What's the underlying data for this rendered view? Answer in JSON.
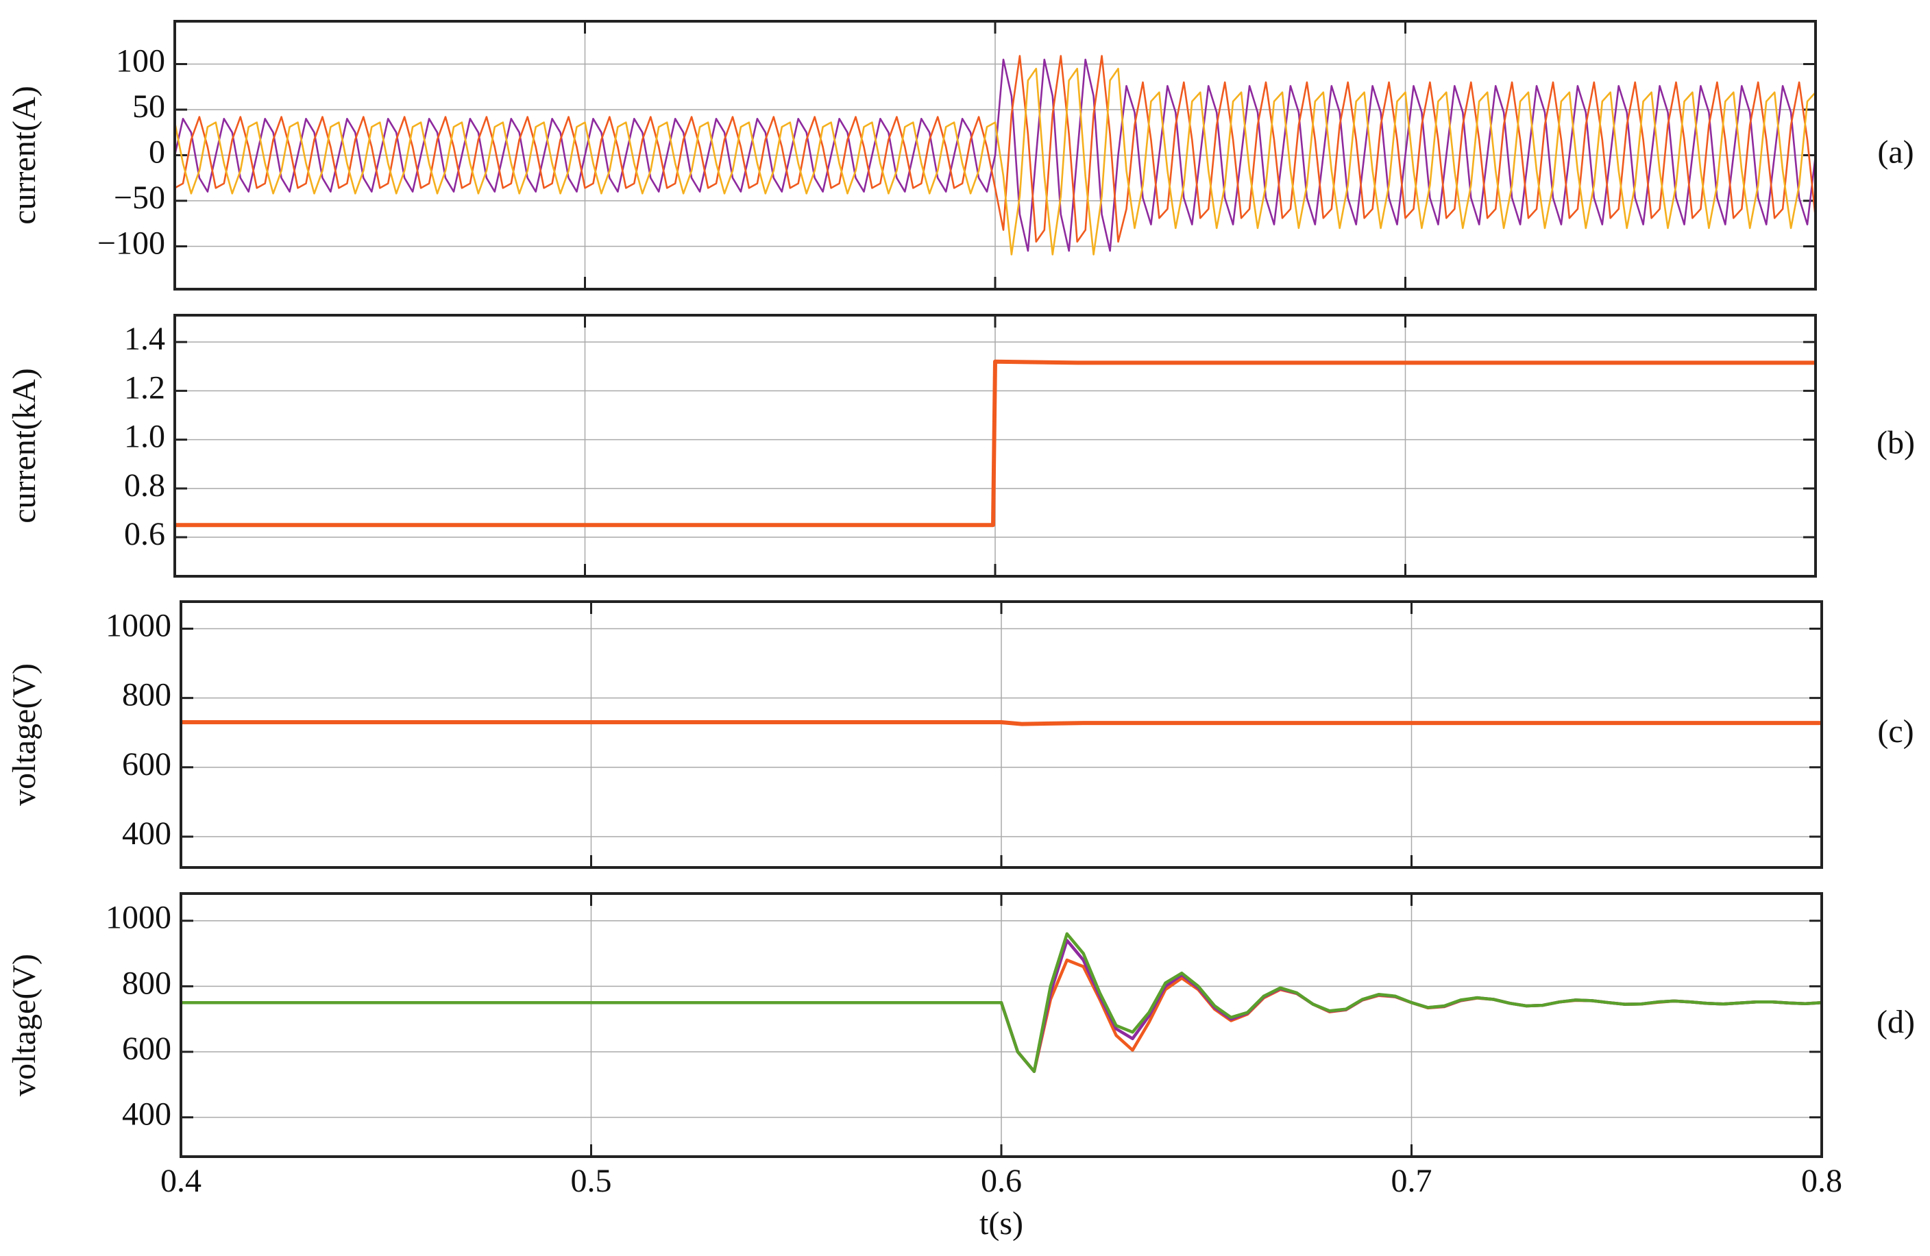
{
  "chart_data": [
    {
      "type": "line",
      "label": "(a)",
      "ylabel": "current(A)",
      "x": [
        0.4,
        0.402,
        0.404,
        0.406,
        0.408,
        0.41,
        0.412,
        0.414,
        0.416,
        0.418,
        0.42,
        0.422,
        0.424,
        0.426,
        0.428,
        0.43,
        0.432,
        0.434,
        0.436,
        0.438,
        0.44,
        0.442,
        0.444,
        0.446,
        0.448,
        0.45,
        0.452,
        0.454,
        0.456,
        0.458,
        0.46,
        0.462,
        0.464,
        0.466,
        0.468,
        0.47,
        0.472,
        0.474,
        0.476,
        0.478,
        0.48,
        0.482,
        0.484,
        0.486,
        0.488,
        0.49,
        0.492,
        0.494,
        0.496,
        0.498,
        0.5,
        0.502,
        0.504,
        0.506,
        0.508,
        0.51,
        0.512,
        0.514,
        0.516,
        0.518,
        0.52,
        0.522,
        0.524,
        0.526,
        0.528,
        0.53,
        0.532,
        0.534,
        0.536,
        0.538,
        0.54,
        0.542,
        0.544,
        0.546,
        0.548,
        0.55,
        0.552,
        0.554,
        0.556,
        0.558,
        0.56,
        0.562,
        0.564,
        0.566,
        0.568,
        0.57,
        0.572,
        0.574,
        0.576,
        0.578,
        0.58,
        0.582,
        0.584,
        0.586,
        0.588,
        0.59,
        0.592,
        0.594,
        0.596,
        0.598,
        0.6,
        0.602,
        0.604,
        0.606,
        0.608,
        0.61,
        0.612,
        0.614,
        0.616,
        0.618,
        0.62,
        0.622,
        0.624,
        0.626,
        0.628,
        0.63,
        0.632,
        0.634,
        0.636,
        0.638,
        0.64,
        0.642,
        0.644,
        0.646,
        0.648,
        0.65,
        0.652,
        0.654,
        0.656,
        0.658,
        0.66,
        0.662,
        0.664,
        0.666,
        0.668,
        0.67,
        0.672,
        0.674,
        0.676,
        0.678,
        0.68,
        0.682,
        0.684,
        0.686,
        0.688,
        0.69,
        0.692,
        0.694,
        0.696,
        0.698,
        0.7,
        0.702,
        0.704,
        0.706,
        0.708,
        0.71,
        0.712,
        0.714,
        0.716,
        0.718,
        0.72,
        0.722,
        0.724,
        0.726,
        0.728,
        0.73,
        0.732,
        0.734,
        0.736,
        0.738,
        0.74,
        0.742,
        0.744,
        0.746,
        0.748,
        0.75,
        0.752,
        0.754,
        0.756,
        0.758,
        0.76,
        0.762,
        0.764,
        0.766,
        0.768,
        0.77,
        0.772,
        0.774,
        0.776,
        0.778,
        0.78,
        0.782,
        0.784,
        0.786,
        0.788,
        0.79,
        0.792,
        0.794,
        0.796,
        0.798,
        0.8
      ],
      "xlim": [
        0.4,
        0.8
      ],
      "xticks": [
        0.4,
        0.5,
        0.6,
        0.7,
        0.8
      ],
      "ylim": [
        -147,
        147
      ],
      "yticks": [
        {
          "value": -100,
          "label": "−100"
        },
        {
          "value": -50,
          "label": "−50"
        },
        0,
        50,
        100
      ],
      "grid": true,
      "series": [
        {
          "color": "#8e2a9e",
          "values": [
            0,
            40,
            25,
            -25,
            -40,
            0,
            40,
            25,
            -25,
            -40,
            0,
            40,
            25,
            -25,
            -40,
            0,
            40,
            25,
            -25,
            -40,
            0,
            40,
            25,
            -25,
            -40,
            0,
            40,
            25,
            -25,
            -40,
            0,
            40,
            25,
            -25,
            -40,
            0,
            40,
            25,
            -25,
            -40,
            0,
            40,
            25,
            -25,
            -40,
            0,
            40,
            25,
            -25,
            -40,
            0,
            40,
            25,
            -25,
            -40,
            0,
            40,
            25,
            -25,
            -40,
            0,
            40,
            25,
            -25,
            -40,
            0,
            40,
            25,
            -25,
            -40,
            0,
            40,
            25,
            -25,
            -40,
            0,
            40,
            25,
            -25,
            -40,
            0,
            40,
            25,
            -25,
            -40,
            0,
            40,
            25,
            -25,
            -40,
            0,
            40,
            25,
            -25,
            -40,
            0,
            40,
            25,
            -25,
            -40,
            0,
            105,
            65,
            -65,
            -105,
            0,
            105,
            65,
            -65,
            -105,
            0,
            105,
            65,
            -65,
            -105,
            0,
            76,
            47,
            -47,
            -76,
            0,
            76,
            47,
            -47,
            -76,
            0,
            76,
            47,
            -47,
            -76,
            0,
            76,
            47,
            -47,
            -76,
            0,
            76,
            47,
            -47,
            -76,
            0,
            76,
            47,
            -47,
            -76,
            0,
            76,
            47,
            -47,
            -76,
            0,
            76,
            47,
            -47,
            -76,
            0,
            76,
            47,
            -47,
            -76,
            0,
            76,
            47,
            -47,
            -76,
            0,
            76,
            47,
            -47,
            -76,
            0,
            76,
            47,
            -47,
            -76,
            0,
            76,
            47,
            -47,
            -76,
            0,
            76,
            47,
            -47,
            -76,
            0,
            76,
            47,
            -47,
            -76,
            0,
            76,
            47,
            -47,
            -76,
            0,
            76,
            47,
            -47,
            -76,
            0
          ]
        },
        {
          "color": "#f05a1e",
          "values": [
            -36,
            -31,
            17,
            42,
            9,
            -36,
            -31,
            17,
            42,
            9,
            -36,
            -31,
            17,
            42,
            9,
            -36,
            -31,
            17,
            42,
            9,
            -36,
            -31,
            17,
            42,
            9,
            -36,
            -31,
            17,
            42,
            9,
            -36,
            -31,
            17,
            42,
            9,
            -36,
            -31,
            17,
            42,
            9,
            -36,
            -31,
            17,
            42,
            9,
            -36,
            -31,
            17,
            42,
            9,
            -36,
            -31,
            17,
            42,
            9,
            -36,
            -31,
            17,
            42,
            9,
            -36,
            -31,
            17,
            42,
            9,
            -36,
            -31,
            17,
            42,
            9,
            -36,
            -31,
            17,
            42,
            9,
            -36,
            -31,
            17,
            42,
            9,
            -36,
            -31,
            17,
            42,
            9,
            -36,
            -31,
            17,
            42,
            9,
            -36,
            -31,
            17,
            42,
            9,
            -36,
            -31,
            17,
            42,
            9,
            -36,
            -82,
            45,
            109,
            23,
            -95,
            -82,
            45,
            109,
            23,
            -95,
            -82,
            45,
            109,
            23,
            -95,
            -59,
            33,
            80,
            17,
            -69,
            -59,
            33,
            80,
            17,
            -69,
            -59,
            33,
            80,
            17,
            -69,
            -59,
            33,
            80,
            17,
            -69,
            -59,
            33,
            80,
            17,
            -69,
            -59,
            33,
            80,
            17,
            -69,
            -59,
            33,
            80,
            17,
            -69,
            -59,
            33,
            80,
            17,
            -69,
            -59,
            33,
            80,
            17,
            -69,
            -59,
            33,
            80,
            17,
            -69,
            -59,
            33,
            80,
            17,
            -69,
            -59,
            33,
            80,
            17,
            -69,
            -59,
            33,
            80,
            17,
            -69,
            -59,
            33,
            80,
            17,
            -69,
            -59,
            33,
            80,
            17,
            -69,
            -59,
            33,
            80,
            17,
            -69,
            -59,
            33,
            80,
            17,
            -69
          ]
        },
        {
          "color": "#f5b01e",
          "values": [
            36,
            -9,
            -42,
            -17,
            31,
            36,
            -9,
            -42,
            -17,
            31,
            36,
            -9,
            -42,
            -17,
            31,
            36,
            -9,
            -42,
            -17,
            31,
            36,
            -9,
            -42,
            -17,
            31,
            36,
            -9,
            -42,
            -17,
            31,
            36,
            -9,
            -42,
            -17,
            31,
            36,
            -9,
            -42,
            -17,
            31,
            36,
            -9,
            -42,
            -17,
            31,
            36,
            -9,
            -42,
            -17,
            31,
            36,
            -9,
            -42,
            -17,
            31,
            36,
            -9,
            -42,
            -17,
            31,
            36,
            -9,
            -42,
            -17,
            31,
            36,
            -9,
            -42,
            -17,
            31,
            36,
            -9,
            -42,
            -17,
            31,
            36,
            -9,
            -42,
            -17,
            31,
            36,
            -9,
            -42,
            -17,
            31,
            36,
            -9,
            -42,
            -17,
            31,
            36,
            -9,
            -42,
            -17,
            31,
            36,
            -9,
            -42,
            -17,
            31,
            36,
            -23,
            -109,
            -45,
            82,
            95,
            -23,
            -109,
            -45,
            82,
            95,
            -23,
            -109,
            -45,
            82,
            95,
            -17,
            -80,
            -33,
            59,
            69,
            -17,
            -80,
            -33,
            59,
            69,
            -17,
            -80,
            -33,
            59,
            69,
            -17,
            -80,
            -33,
            59,
            69,
            -17,
            -80,
            -33,
            59,
            69,
            -17,
            -80,
            -33,
            59,
            69,
            -17,
            -80,
            -33,
            59,
            69,
            -17,
            -80,
            -33,
            59,
            69,
            -17,
            -80,
            -33,
            59,
            69,
            -17,
            -80,
            -33,
            59,
            69,
            -17,
            -80,
            -33,
            59,
            69,
            -17,
            -80,
            -33,
            59,
            69,
            -17,
            -80,
            -33,
            59,
            69,
            -17,
            -80,
            -33,
            59,
            69,
            -17,
            -80,
            -33,
            59,
            69,
            -17,
            -80,
            -33,
            59,
            69,
            -17,
            -80,
            -33,
            59,
            69
          ]
        }
      ]
    },
    {
      "type": "line",
      "label": "(b)",
      "ylabel": "current(kA)",
      "x": [
        0.4,
        0.5995,
        0.6,
        0.62,
        0.8
      ],
      "xlim": [
        0.4,
        0.8
      ],
      "xticks": [
        0.4,
        0.5,
        0.6,
        0.7,
        0.8
      ],
      "ylim": [
        0.44,
        1.51
      ],
      "yticks": [
        0.6,
        0.8,
        {
          "value": 1.0,
          "label": "1.0"
        },
        1.2,
        1.4
      ],
      "grid": true,
      "series": [
        {
          "color": "#f05a1e",
          "values": [
            0.65,
            0.65,
            1.32,
            1.315,
            1.315
          ]
        }
      ]
    },
    {
      "type": "line",
      "label": "(c)",
      "ylabel": "voltage(V)",
      "x": [
        0.4,
        0.6,
        0.605,
        0.62,
        0.8
      ],
      "xlim": [
        0.4,
        0.8
      ],
      "xticks": [
        0.4,
        0.5,
        0.6,
        0.7,
        0.8
      ],
      "ylim": [
        311,
        1078
      ],
      "yticks": [
        400,
        600,
        800,
        1000
      ],
      "grid": true,
      "series": [
        {
          "color": "#f05a1e",
          "values": [
            730,
            730,
            725,
            728,
            728
          ]
        }
      ]
    },
    {
      "type": "line",
      "label": "(d)",
      "ylabel": "voltage(V)",
      "xlabel": "t(s)",
      "x": [
        0.4,
        0.596,
        0.6,
        0.604,
        0.608,
        0.612,
        0.616,
        0.62,
        0.624,
        0.628,
        0.632,
        0.636,
        0.64,
        0.644,
        0.648,
        0.652,
        0.656,
        0.66,
        0.664,
        0.668,
        0.672,
        0.676,
        0.68,
        0.684,
        0.688,
        0.692,
        0.696,
        0.7,
        0.704,
        0.708,
        0.712,
        0.716,
        0.72,
        0.724,
        0.728,
        0.732,
        0.736,
        0.74,
        0.744,
        0.748,
        0.752,
        0.756,
        0.76,
        0.764,
        0.768,
        0.772,
        0.776,
        0.78,
        0.784,
        0.788,
        0.792,
        0.796,
        0.8
      ],
      "xlim": [
        0.4,
        0.8
      ],
      "xticks": [
        0.4,
        0.5,
        0.6,
        0.7,
        0.8
      ],
      "ylim": [
        280,
        1083
      ],
      "yticks": [
        400,
        600,
        800,
        1000
      ],
      "grid": true,
      "series": [
        {
          "color": "#f05a1e",
          "values": [
            750,
            750,
            750,
            600,
            540,
            760,
            880,
            860,
            760,
            650,
            605,
            690,
            790,
            825,
            790,
            730,
            695,
            715,
            765,
            790,
            778,
            745,
            722,
            728,
            758,
            772,
            768,
            750,
            734,
            738,
            756,
            764,
            760,
            748,
            740,
            742,
            752,
            757,
            756,
            750,
            745,
            746,
            751,
            755,
            752,
            748,
            746,
            749,
            752,
            752,
            749,
            747,
            750
          ]
        },
        {
          "color": "#8e2a9e",
          "values": [
            750,
            750,
            750,
            600,
            540,
            780,
            940,
            880,
            770,
            670,
            640,
            710,
            800,
            835,
            795,
            735,
            700,
            718,
            768,
            793,
            779,
            745,
            724,
            729,
            759,
            774,
            769,
            750,
            735,
            739,
            757,
            765,
            760,
            748,
            740,
            742,
            752,
            758,
            756,
            750,
            745,
            746,
            752,
            755,
            752,
            748,
            746,
            749,
            752,
            752,
            749,
            747,
            750
          ]
        },
        {
          "color": "#5aa02c",
          "values": [
            750,
            750,
            750,
            600,
            540,
            800,
            960,
            900,
            780,
            680,
            660,
            720,
            810,
            840,
            800,
            740,
            705,
            720,
            770,
            795,
            780,
            745,
            725,
            730,
            760,
            775,
            770,
            750,
            735,
            740,
            758,
            765,
            760,
            748,
            740,
            742,
            752,
            758,
            756,
            750,
            745,
            746,
            752,
            755,
            752,
            748,
            746,
            749,
            752,
            752,
            749,
            747,
            750
          ]
        }
      ]
    }
  ]
}
